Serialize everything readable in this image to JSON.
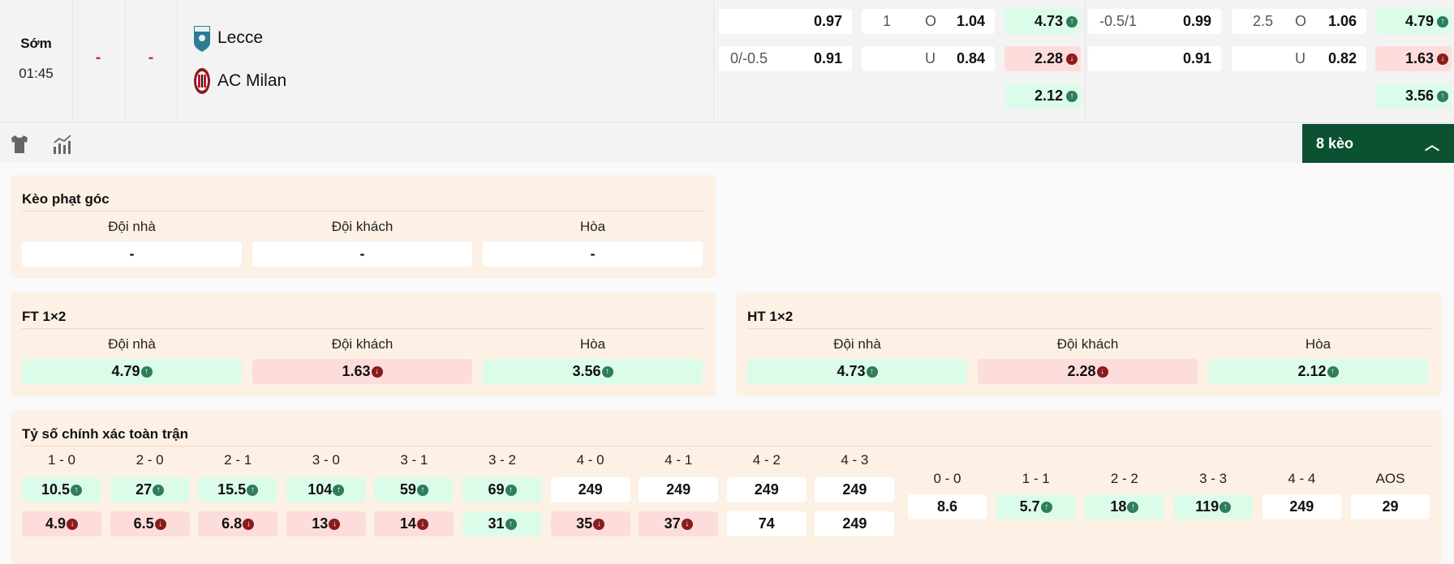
{
  "match": {
    "status": "Sớm",
    "time": "01:45",
    "home_score": "-",
    "away_score": "-",
    "home_team": "Lecce",
    "away_team": "AC Milan",
    "home_logo": "lecce-crest",
    "away_logo": "ac-milan-crest"
  },
  "top_odds": [
    [
      {
        "label": "",
        "value": "0.97"
      },
      {
        "label": "0/-0.5",
        "value": "0.91"
      }
    ],
    [
      {
        "label": "1",
        "side": "O",
        "value": "1.04"
      },
      {
        "label": "",
        "side": "U",
        "value": "0.84"
      }
    ],
    [
      {
        "value": "4.73",
        "trend": "up"
      },
      {
        "value": "2.28",
        "trend": "down"
      },
      {
        "value": "2.12",
        "trend": "up"
      }
    ],
    [
      {
        "label": "-0.5/1",
        "value": "0.99"
      },
      {
        "label": "",
        "value": "0.91"
      }
    ],
    [
      {
        "label": "2.5",
        "side": "O",
        "value": "1.06"
      },
      {
        "label": "",
        "side": "U",
        "value": "0.82"
      }
    ],
    [
      {
        "value": "4.79",
        "trend": "up"
      },
      {
        "value": "1.63",
        "trend": "down"
      },
      {
        "value": "3.56",
        "trend": "up"
      }
    ]
  ],
  "toolbar": {
    "icons": [
      "jersey-icon",
      "chart-icon"
    ],
    "more_label": "8 kèo",
    "more_icon": "chevron-up-icon"
  },
  "panels": {
    "corner": {
      "title": "Kèo phạt góc",
      "headers": [
        "Đội nhà",
        "Đội khách",
        "Hòa"
      ],
      "cells": [
        {
          "value": "-"
        },
        {
          "value": "-"
        },
        {
          "value": "-"
        }
      ]
    },
    "ft": {
      "title": "FT 1×2",
      "headers": [
        "Đội nhà",
        "Đội khách",
        "Hòa"
      ],
      "cells": [
        {
          "value": "4.79",
          "trend": "up"
        },
        {
          "value": "1.63",
          "trend": "down"
        },
        {
          "value": "3.56",
          "trend": "up"
        }
      ]
    },
    "ht": {
      "title": "HT 1×2",
      "headers": [
        "Đội nhà",
        "Đội khách",
        "Hòa"
      ],
      "cells": [
        {
          "value": "4.73",
          "trend": "up"
        },
        {
          "value": "2.28",
          "trend": "down"
        },
        {
          "value": "2.12",
          "trend": "up"
        }
      ]
    }
  },
  "correct_score": {
    "title": "Tỷ số chính xác toàn trận",
    "left": [
      {
        "score": "1 - 0",
        "home": {
          "value": "10.5",
          "trend": "up"
        },
        "away": {
          "value": "4.9",
          "trend": "down"
        }
      },
      {
        "score": "2 - 0",
        "home": {
          "value": "27",
          "trend": "up"
        },
        "away": {
          "value": "6.5",
          "trend": "down"
        }
      },
      {
        "score": "2 - 1",
        "home": {
          "value": "15.5",
          "trend": "up"
        },
        "away": {
          "value": "6.8",
          "trend": "down"
        }
      },
      {
        "score": "3 - 0",
        "home": {
          "value": "104",
          "trend": "up"
        },
        "away": {
          "value": "13",
          "trend": "down"
        }
      },
      {
        "score": "3 - 1",
        "home": {
          "value": "59",
          "trend": "up"
        },
        "away": {
          "value": "14",
          "trend": "down"
        }
      },
      {
        "score": "3 - 2",
        "home": {
          "value": "69",
          "trend": "up"
        },
        "away": {
          "value": "31",
          "trend": "up"
        }
      },
      {
        "score": "4 - 0",
        "home": {
          "value": "249"
        },
        "away": {
          "value": "35",
          "trend": "down"
        }
      },
      {
        "score": "4 - 1",
        "home": {
          "value": "249"
        },
        "away": {
          "value": "37",
          "trend": "down"
        }
      },
      {
        "score": "4 - 2",
        "home": {
          "value": "249"
        },
        "away": {
          "value": "74"
        }
      },
      {
        "score": "4 - 3",
        "home": {
          "value": "249"
        },
        "away": {
          "value": "249"
        }
      }
    ],
    "draws": [
      {
        "score": "0 - 0",
        "odds": {
          "value": "8.6"
        }
      },
      {
        "score": "1 - 1",
        "odds": {
          "value": "5.7",
          "trend": "up"
        }
      },
      {
        "score": "2 - 2",
        "odds": {
          "value": "18",
          "trend": "up"
        }
      },
      {
        "score": "3 - 3",
        "odds": {
          "value": "119",
          "trend": "up"
        }
      },
      {
        "score": "4 - 4",
        "odds": {
          "value": "249"
        }
      },
      {
        "score": "AOS",
        "odds": {
          "value": "29"
        }
      }
    ]
  },
  "colors": {
    "up_bg": "#dcfcea",
    "down_bg": "#fddcdc",
    "up_icon": "#2f7d5c",
    "down_icon": "#8a1c1c",
    "accent": "#0b5132",
    "panel_bg": "#fdf0e4"
  }
}
